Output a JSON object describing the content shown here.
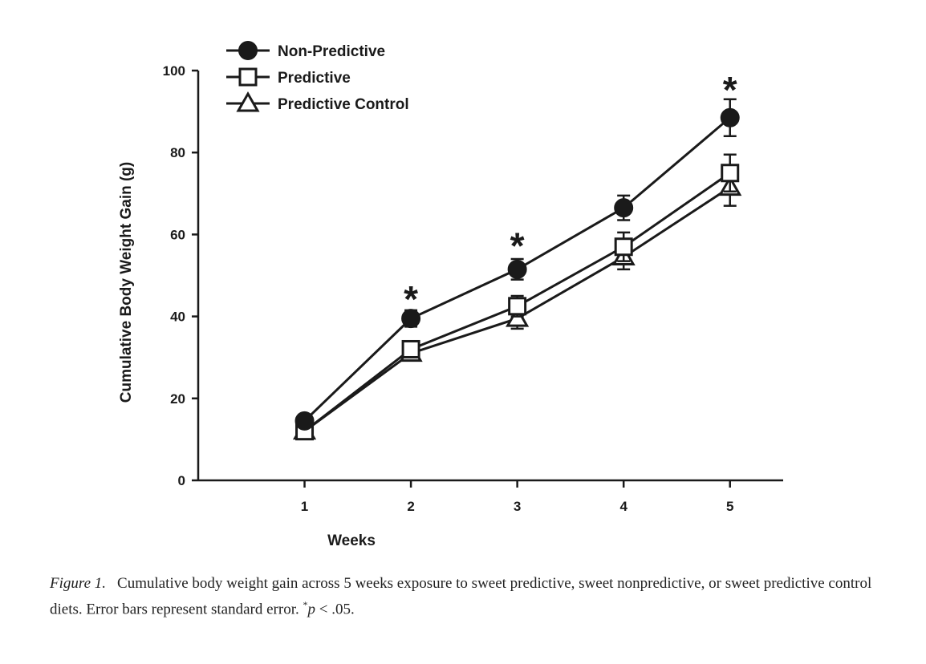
{
  "chart_data": {
    "type": "line",
    "title": "",
    "xlabel": "Weeks",
    "ylabel": "Cumulative Body Weight Gain (g)",
    "x": [
      1,
      2,
      3,
      4,
      5
    ],
    "xticks": [
      "1",
      "2",
      "3",
      "4",
      "5"
    ],
    "xlim": [
      0,
      5.5
    ],
    "yticks": [
      "0",
      "20",
      "40",
      "60",
      "80",
      "100"
    ],
    "ylim": [
      0,
      100
    ],
    "grid": false,
    "legend_position": "top-left",
    "series": [
      {
        "name": "Non-Predictive",
        "marker": "filled-circle",
        "values": [
          14.5,
          39.5,
          51.5,
          66.5,
          88.5
        ],
        "errors": [
          1.5,
          2.0,
          2.5,
          3.0,
          4.5
        ]
      },
      {
        "name": "Predictive",
        "marker": "open-square",
        "values": [
          12.0,
          32.0,
          42.5,
          57.0,
          75.0
        ],
        "errors": [
          1.0,
          1.5,
          2.5,
          3.5,
          4.5
        ]
      },
      {
        "name": "Predictive Control",
        "marker": "open-triangle",
        "values": [
          12.0,
          31.0,
          39.5,
          54.5,
          71.5
        ],
        "errors": [
          1.0,
          1.5,
          2.5,
          3.0,
          4.5
        ]
      }
    ],
    "annotations": [
      {
        "text": "*",
        "x": 2,
        "y": 47
      },
      {
        "text": "*",
        "x": 3,
        "y": 60
      },
      {
        "text": "*",
        "x": 5,
        "y": 98
      }
    ],
    "colors": {
      "line": "#1a1a1a",
      "fill_open": "#ffffff"
    }
  },
  "caption": {
    "label": "Figure 1.",
    "text": "Cumulative body weight gain across 5 weeks exposure to sweet predictive, sweet nonpredictive, or sweet predictive control diets. Error bars represent standard error.",
    "sig_symbol": "*",
    "sig_p": "p",
    "sig_rest": " < .05."
  }
}
